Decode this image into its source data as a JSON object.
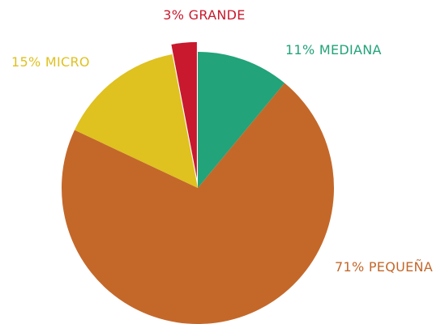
{
  "chart_data": {
    "type": "pie",
    "categories": [
      "MEDIANA",
      "PEQUEÑA",
      "MICRO",
      "GRANDE"
    ],
    "values": [
      11,
      71,
      15,
      3
    ],
    "value_labels": [
      "11%",
      "71%",
      "15%",
      "3%"
    ],
    "colors": [
      "#22a37a",
      "#c4682a",
      "#dfc120",
      "#c8192e"
    ]
  }
}
